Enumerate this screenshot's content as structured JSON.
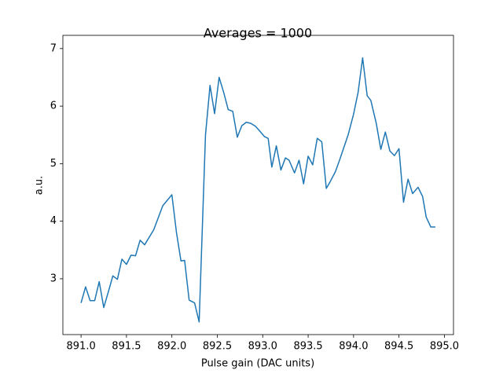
{
  "chart_data": {
    "type": "line",
    "title": "Averages = 1000",
    "x_label": "Pulse gain (DAC units)",
    "y_label": "a.u.",
    "x": [
      891.0,
      891.05,
      891.1,
      891.15,
      891.2,
      891.25,
      891.3,
      891.35,
      891.4,
      891.45,
      891.5,
      891.55,
      891.6,
      891.65,
      891.7,
      891.8,
      891.9,
      892.0,
      892.05,
      892.1,
      892.14,
      892.19,
      892.25,
      892.3,
      892.37,
      892.42,
      892.47,
      892.52,
      892.57,
      892.62,
      892.67,
      892.72,
      892.77,
      892.82,
      892.87,
      892.92,
      892.96,
      893.02,
      893.06,
      893.1,
      893.15,
      893.2,
      893.25,
      893.29,
      893.35,
      893.4,
      893.45,
      893.5,
      893.55,
      893.6,
      893.65,
      893.7,
      893.74,
      893.8,
      893.85,
      893.94,
      894.0,
      894.05,
      894.1,
      894.15,
      894.19,
      894.25,
      894.3,
      894.35,
      894.4,
      894.45,
      894.5,
      894.55,
      894.6,
      894.65,
      894.71,
      894.76,
      894.8,
      894.85,
      894.9
    ],
    "series": [
      {
        "name": "signal",
        "color": "#1f77b4",
        "values": [
          2.58,
          2.86,
          2.62,
          2.62,
          2.95,
          2.5,
          2.77,
          3.05,
          2.99,
          3.34,
          3.25,
          3.41,
          3.4,
          3.67,
          3.59,
          3.85,
          4.27,
          4.46,
          3.81,
          3.31,
          3.32,
          2.63,
          2.58,
          2.25,
          5.5,
          6.36,
          5.87,
          6.5,
          6.24,
          5.94,
          5.91,
          5.46,
          5.66,
          5.72,
          5.7,
          5.65,
          5.58,
          5.47,
          5.44,
          4.94,
          5.31,
          4.89,
          5.1,
          5.06,
          4.84,
          5.06,
          4.65,
          5.13,
          4.98,
          5.44,
          5.38,
          4.57,
          4.68,
          4.86,
          5.08,
          5.5,
          5.86,
          6.24,
          6.84,
          6.18,
          6.1,
          5.7,
          5.25,
          5.55,
          5.22,
          5.14,
          5.26,
          4.33,
          4.73,
          4.48,
          4.59,
          4.43,
          4.07,
          3.9,
          3.9
        ]
      }
    ],
    "xlim": [
      890.8,
      895.1
    ],
    "ylim": [
      2.03,
      7.23
    ],
    "xticks": [
      {
        "value": 891.0,
        "label": "891.0"
      },
      {
        "value": 891.5,
        "label": "891.5"
      },
      {
        "value": 892.0,
        "label": "892.0"
      },
      {
        "value": 892.5,
        "label": "892.5"
      },
      {
        "value": 893.0,
        "label": "893.0"
      },
      {
        "value": 893.5,
        "label": "893.5"
      },
      {
        "value": 894.0,
        "label": "894.0"
      },
      {
        "value": 894.5,
        "label": "894.5"
      },
      {
        "value": 895.0,
        "label": "895.0"
      }
    ],
    "yticks": [
      3,
      4,
      5,
      6,
      7
    ]
  }
}
